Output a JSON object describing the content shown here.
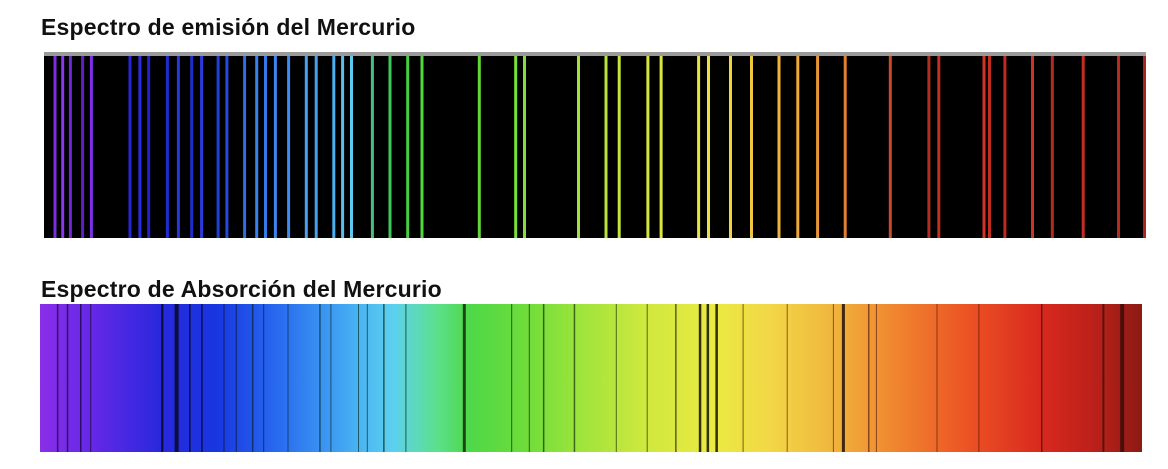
{
  "emission": {
    "title": "Espectro de emisión del Mercurio",
    "background": "#000000",
    "lines": [
      {
        "pos": 0.01,
        "color": "#7a2ee0"
      },
      {
        "pos": 0.017,
        "color": "#8838f0"
      },
      {
        "pos": 0.024,
        "color": "#6a28d8"
      },
      {
        "pos": 0.035,
        "color": "#6020c8"
      },
      {
        "pos": 0.043,
        "color": "#7c30e8"
      },
      {
        "pos": 0.078,
        "color": "#2626d6"
      },
      {
        "pos": 0.087,
        "color": "#2c2ce0"
      },
      {
        "pos": 0.095,
        "color": "#2222c8"
      },
      {
        "pos": 0.112,
        "color": "#1f2cd0"
      },
      {
        "pos": 0.122,
        "color": "#2636e0"
      },
      {
        "pos": 0.134,
        "color": "#1e2ec8"
      },
      {
        "pos": 0.143,
        "color": "#2a3ce0"
      },
      {
        "pos": 0.158,
        "color": "#2040d8"
      },
      {
        "pos": 0.166,
        "color": "#2448e0"
      },
      {
        "pos": 0.182,
        "color": "#2e6ee8"
      },
      {
        "pos": 0.193,
        "color": "#3a80f0"
      },
      {
        "pos": 0.201,
        "color": "#347ae8"
      },
      {
        "pos": 0.21,
        "color": "#3a86ee"
      },
      {
        "pos": 0.222,
        "color": "#3c8cf0"
      },
      {
        "pos": 0.238,
        "color": "#4aa0f0"
      },
      {
        "pos": 0.247,
        "color": "#44a2ec"
      },
      {
        "pos": 0.263,
        "color": "#4cb0f0"
      },
      {
        "pos": 0.271,
        "color": "#56c0f0"
      },
      {
        "pos": 0.279,
        "color": "#5ccaf0"
      },
      {
        "pos": 0.298,
        "color": "#44c080"
      },
      {
        "pos": 0.314,
        "color": "#3ec85c"
      },
      {
        "pos": 0.33,
        "color": "#46d040"
      },
      {
        "pos": 0.343,
        "color": "#50d83c"
      },
      {
        "pos": 0.395,
        "color": "#62d838"
      },
      {
        "pos": 0.428,
        "color": "#7ce038"
      },
      {
        "pos": 0.436,
        "color": "#80e03a"
      },
      {
        "pos": 0.485,
        "color": "#a4e03a"
      },
      {
        "pos": 0.51,
        "color": "#b8e43c"
      },
      {
        "pos": 0.522,
        "color": "#c4e43e"
      },
      {
        "pos": 0.548,
        "color": "#d6e43e"
      },
      {
        "pos": 0.56,
        "color": "#dce83e"
      },
      {
        "pos": 0.594,
        "color": "#e8e43e"
      },
      {
        "pos": 0.603,
        "color": "#ece03e"
      },
      {
        "pos": 0.623,
        "color": "#f0d43c"
      },
      {
        "pos": 0.642,
        "color": "#f0c83c"
      },
      {
        "pos": 0.667,
        "color": "#f0b43a"
      },
      {
        "pos": 0.684,
        "color": "#f0a838"
      },
      {
        "pos": 0.702,
        "color": "#e89836"
      },
      {
        "pos": 0.727,
        "color": "#e08030"
      },
      {
        "pos": 0.768,
        "color": "#c84a28"
      },
      {
        "pos": 0.803,
        "color": "#b03020"
      },
      {
        "pos": 0.812,
        "color": "#c0301e"
      },
      {
        "pos": 0.853,
        "color": "#d43424"
      },
      {
        "pos": 0.858,
        "color": "#c42e20"
      },
      {
        "pos": 0.872,
        "color": "#c02a20"
      },
      {
        "pos": 0.897,
        "color": "#d03224"
      },
      {
        "pos": 0.915,
        "color": "#b42a1e"
      },
      {
        "pos": 0.943,
        "color": "#c42e22"
      },
      {
        "pos": 0.975,
        "color": "#b82a1e"
      },
      {
        "pos": 1.0,
        "color": "#aa261c"
      }
    ]
  },
  "absorption": {
    "title": "Espectro de Absorción  del Mercurio",
    "gradient": [
      {
        "offset": 0.0,
        "color": "#8a2ee8"
      },
      {
        "offset": 0.05,
        "color": "#6228e6"
      },
      {
        "offset": 0.11,
        "color": "#2828dc"
      },
      {
        "offset": 0.16,
        "color": "#1836e0"
      },
      {
        "offset": 0.22,
        "color": "#2a6ef0"
      },
      {
        "offset": 0.28,
        "color": "#44aaf2"
      },
      {
        "offset": 0.32,
        "color": "#5cd0f0"
      },
      {
        "offset": 0.36,
        "color": "#5ce08c"
      },
      {
        "offset": 0.39,
        "color": "#4ed848"
      },
      {
        "offset": 0.44,
        "color": "#6edc3a"
      },
      {
        "offset": 0.49,
        "color": "#9ee43c"
      },
      {
        "offset": 0.55,
        "color": "#cfe83e"
      },
      {
        "offset": 0.61,
        "color": "#eaea42"
      },
      {
        "offset": 0.66,
        "color": "#f2d846"
      },
      {
        "offset": 0.71,
        "color": "#f0bc40"
      },
      {
        "offset": 0.77,
        "color": "#f08a30"
      },
      {
        "offset": 0.84,
        "color": "#ec5424"
      },
      {
        "offset": 0.91,
        "color": "#d8281e"
      },
      {
        "offset": 0.96,
        "color": "#b8201a"
      },
      {
        "offset": 1.0,
        "color": "#8c1a14"
      }
    ],
    "lines": [
      {
        "pos": 0.016,
        "color": "#2a0a50",
        "weight": 1.5
      },
      {
        "pos": 0.025,
        "color": "#2a0a50",
        "weight": 1.5
      },
      {
        "pos": 0.037,
        "color": "#220850",
        "weight": 1.5
      },
      {
        "pos": 0.046,
        "color": "#220850",
        "weight": 1
      },
      {
        "pos": 0.111,
        "color": "#050520",
        "weight": 2
      },
      {
        "pos": 0.124,
        "color": "#080828",
        "weight": 4
      },
      {
        "pos": 0.136,
        "color": "#080830",
        "weight": 1.5
      },
      {
        "pos": 0.147,
        "color": "#0a0a38",
        "weight": 1.5
      },
      {
        "pos": 0.167,
        "color": "#0a1a48",
        "weight": 1
      },
      {
        "pos": 0.178,
        "color": "#0a1a48",
        "weight": 1
      },
      {
        "pos": 0.193,
        "color": "#0c2a58",
        "weight": 1.5
      },
      {
        "pos": 0.203,
        "color": "#0c2a58",
        "weight": 1
      },
      {
        "pos": 0.225,
        "color": "#103a60",
        "weight": 1
      },
      {
        "pos": 0.254,
        "color": "#144458",
        "weight": 1.5
      },
      {
        "pos": 0.264,
        "color": "#144458",
        "weight": 1
      },
      {
        "pos": 0.289,
        "color": "#164a50",
        "weight": 1
      },
      {
        "pos": 0.297,
        "color": "#164a50",
        "weight": 1
      },
      {
        "pos": 0.312,
        "color": "#184a30",
        "weight": 1.5
      },
      {
        "pos": 0.332,
        "color": "#184a20",
        "weight": 1
      },
      {
        "pos": 0.385,
        "color": "#102a08",
        "weight": 3
      },
      {
        "pos": 0.428,
        "color": "#1e4a10",
        "weight": 1
      },
      {
        "pos": 0.444,
        "color": "#1e4a10",
        "weight": 1
      },
      {
        "pos": 0.457,
        "color": "#244e10",
        "weight": 1.5
      },
      {
        "pos": 0.485,
        "color": "#2a5210",
        "weight": 1.5
      },
      {
        "pos": 0.523,
        "color": "#3a5410",
        "weight": 1
      },
      {
        "pos": 0.551,
        "color": "#3e5212",
        "weight": 1
      },
      {
        "pos": 0.577,
        "color": "#484a12",
        "weight": 1.5
      },
      {
        "pos": 0.599,
        "color": "#101000",
        "weight": 2.5
      },
      {
        "pos": 0.606,
        "color": "#101000",
        "weight": 2.5
      },
      {
        "pos": 0.614,
        "color": "#101000",
        "weight": 2.5
      },
      {
        "pos": 0.638,
        "color": "#604810",
        "weight": 1
      },
      {
        "pos": 0.678,
        "color": "#7a4812",
        "weight": 1
      },
      {
        "pos": 0.72,
        "color": "#7a3e10",
        "weight": 1
      },
      {
        "pos": 0.729,
        "color": "#201008",
        "weight": 3
      },
      {
        "pos": 0.752,
        "color": "#7a3412",
        "weight": 1.5
      },
      {
        "pos": 0.759,
        "color": "#7a3412",
        "weight": 1
      },
      {
        "pos": 0.814,
        "color": "#7a2a12",
        "weight": 1
      },
      {
        "pos": 0.852,
        "color": "#7a1a10",
        "weight": 1
      },
      {
        "pos": 0.909,
        "color": "#5a1410",
        "weight": 1.5
      },
      {
        "pos": 0.965,
        "color": "#4a100c",
        "weight": 2
      },
      {
        "pos": 0.982,
        "color": "#3a0c0a",
        "weight": 4
      }
    ]
  }
}
